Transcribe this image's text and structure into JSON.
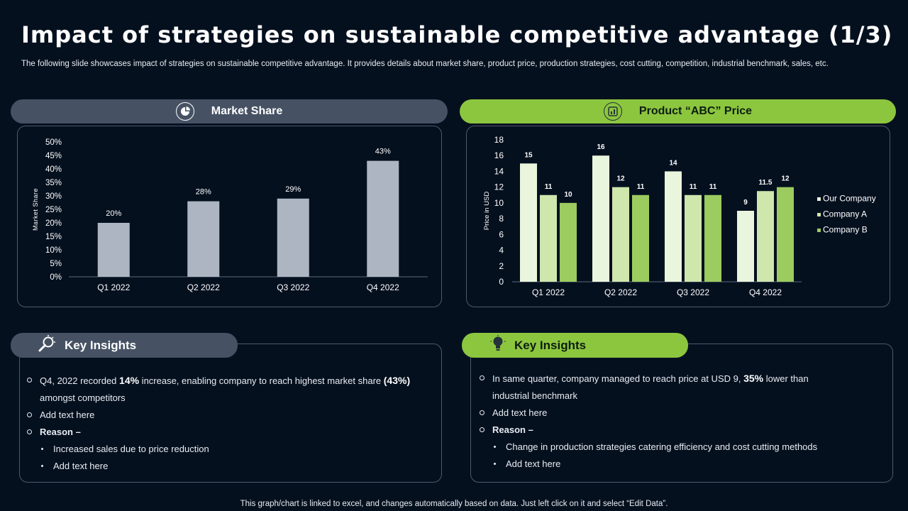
{
  "header": {
    "title": "Impact of strategies on sustainable competitive advantage (1/3)",
    "subtitle": "The following slide showcases impact of strategies on sustainable competitive advantage. It provides details about market share, product price, production strategies, cost cutting, competition, industrial benchmark, sales, etc."
  },
  "left_section": {
    "header_label": "Market Share",
    "header_icon": "pie-chart-icon",
    "insights_title": "Key Insights",
    "insights_icon": "magnifier-icon",
    "insights": {
      "p1_a": "Q4, 2022 recorded ",
      "p1_b": "14%",
      "p1_c": " increase, enabling company to reach highest market share ",
      "p1_d": "(43%)",
      "p1_e": "amongst competitors",
      "p2": "Add text here",
      "p3": "Reason –",
      "p4": "Increased sales due to price reduction",
      "p5": "Add text here"
    }
  },
  "right_section": {
    "header_label": "Product “ABC” Price",
    "header_icon": "chart-icon",
    "insights_title": "Key Insights",
    "insights_icon": "lightbulb-icon",
    "insights": {
      "p1_a": "In same quarter, company managed to reach price at USD 9, ",
      "p1_b": "35%",
      "p1_c": " lower than",
      "p1_d": "industrial benchmark",
      "p2": "Add text here",
      "p3": "Reason –",
      "p4": "Change in production strategies catering efficiency and cost cutting methods",
      "p5": "Add text here"
    }
  },
  "footer": "This graph/chart is linked to excel, and changes automatically based on data. Just left click on it and select “Edit Data”.",
  "colors": {
    "background": "#05101f",
    "grey_bar": "#aeb5c2",
    "accent_green": "#8cc63f",
    "our_company": "#eaf5dd",
    "company_a": "#cfe6ad",
    "company_b": "#9ccb5f"
  },
  "chart_data": [
    {
      "type": "bar",
      "title": "Market Share",
      "categories": [
        "Q1 2022",
        "Q2 2022",
        "Q3 2022",
        "Q4 2022"
      ],
      "values": [
        20,
        28,
        29,
        43
      ],
      "value_labels": [
        "20%",
        "28%",
        "29%",
        "43%"
      ],
      "ylabel": "Market Share",
      "xlabel": "",
      "ylim": [
        0,
        50
      ],
      "yticks": [
        0,
        5,
        10,
        15,
        20,
        25,
        30,
        35,
        40,
        45,
        50
      ],
      "ytick_labels": [
        "0%",
        "5%",
        "10%",
        "15%",
        "20%",
        "25%",
        "30%",
        "35%",
        "40%",
        "45%",
        "50%"
      ],
      "grid": false
    },
    {
      "type": "bar",
      "title": "Product “ABC” Price",
      "categories": [
        "Q1 2022",
        "Q2 2022",
        "Q3 2022",
        "Q4 2022"
      ],
      "series": [
        {
          "name": "Our Company",
          "values": [
            15,
            16,
            14,
            9
          ],
          "labels": [
            "15",
            "16",
            "14",
            "9"
          ]
        },
        {
          "name": "Company A",
          "values": [
            11,
            12,
            11,
            11.5
          ],
          "labels": [
            "11",
            "12",
            "11",
            "11.5"
          ]
        },
        {
          "name": "Company B",
          "values": [
            10,
            11,
            11,
            12
          ],
          "labels": [
            "10",
            "11",
            "11",
            "12"
          ]
        }
      ],
      "ylabel": "Price in USD",
      "xlabel": "",
      "ylim": [
        0,
        18
      ],
      "yticks": [
        0,
        2,
        4,
        6,
        8,
        10,
        12,
        14,
        16,
        18
      ],
      "ytick_labels": [
        "0",
        "2",
        "4",
        "6",
        "8",
        "10",
        "12",
        "14",
        "16",
        "18"
      ],
      "legend": "right",
      "grid": false
    }
  ]
}
